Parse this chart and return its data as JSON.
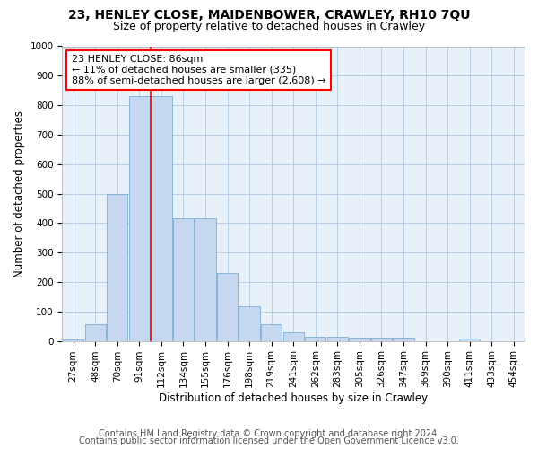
{
  "title1": "23, HENLEY CLOSE, MAIDENBOWER, CRAWLEY, RH10 7QU",
  "title2": "Size of property relative to detached houses in Crawley",
  "xlabel": "Distribution of detached houses by size in Crawley",
  "ylabel": "Number of detached properties",
  "categories": [
    "27sqm",
    "48sqm",
    "70sqm",
    "91sqm",
    "112sqm",
    "134sqm",
    "155sqm",
    "176sqm",
    "198sqm",
    "219sqm",
    "241sqm",
    "262sqm",
    "283sqm",
    "305sqm",
    "326sqm",
    "347sqm",
    "369sqm",
    "390sqm",
    "411sqm",
    "433sqm",
    "454sqm"
  ],
  "values": [
    5,
    57,
    500,
    830,
    830,
    415,
    415,
    230,
    117,
    57,
    30,
    14,
    14,
    11,
    11,
    11,
    0,
    0,
    7,
    0,
    0
  ],
  "bar_color": "#c5d8f0",
  "bar_edge_color": "#7baed4",
  "vline_x": 3.5,
  "vline_color": "red",
  "annotation_text": "23 HENLEY CLOSE: 86sqm\n← 11% of detached houses are smaller (335)\n88% of semi-detached houses are larger (2,608) →",
  "annotation_box_color": "white",
  "annotation_box_edge_color": "red",
  "ylim": [
    0,
    1000
  ],
  "yticks": [
    0,
    100,
    200,
    300,
    400,
    500,
    600,
    700,
    800,
    900,
    1000
  ],
  "footer1": "Contains HM Land Registry data © Crown copyright and database right 2024.",
  "footer2": "Contains public sector information licensed under the Open Government Licence v3.0.",
  "title1_fontsize": 10,
  "title2_fontsize": 9,
  "xlabel_fontsize": 8.5,
  "ylabel_fontsize": 8.5,
  "tick_fontsize": 7.5,
  "footer_fontsize": 7,
  "grid_color": "#b8cfe8",
  "bg_color": "#e8f0fa"
}
